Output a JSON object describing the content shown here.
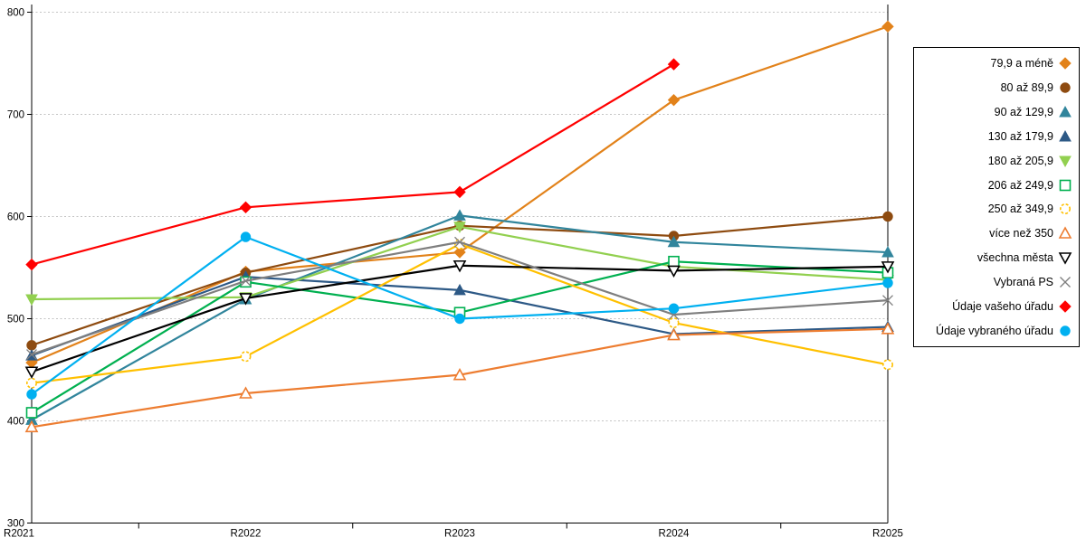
{
  "page": {
    "background": "#FFFFFF"
  },
  "chart_data": {
    "type": "line",
    "title": "",
    "xlabel": "",
    "ylabel": "",
    "x": [
      "R2021",
      "R2022",
      "R2023",
      "R2024",
      "R2025"
    ],
    "ylim": [
      300,
      800
    ],
    "yticks": [
      300,
      400,
      500,
      600,
      700,
      800
    ],
    "grid": "horizontal-dashed",
    "gridline_color": "#C3C3C3",
    "axis_color": "#000000",
    "legend_position": "right-outside-box",
    "series": [
      {
        "name": "79,9 a méně",
        "marker": "diamond",
        "filled": true,
        "color": "#E2821A",
        "values": [
          457,
          546,
          565,
          714,
          786
        ]
      },
      {
        "name": "80 až 89,9",
        "marker": "circle",
        "filled": true,
        "color": "#8E4B10",
        "values": [
          474,
          545,
          591,
          581,
          600
        ]
      },
      {
        "name": "90 až 129,9",
        "marker": "triangle-up",
        "filled": true,
        "color": "#31859C",
        "values": [
          401,
          519,
          601,
          575,
          565
        ]
      },
      {
        "name": "130 až 179,9",
        "marker": "triangle-up",
        "filled": true,
        "color": "#2D5986",
        "values": [
          464,
          541,
          528,
          485,
          492
        ]
      },
      {
        "name": "180 až 205,9",
        "marker": "triangle-down",
        "filled": true,
        "color": "#92D050",
        "values": [
          519,
          521,
          590,
          551,
          538
        ]
      },
      {
        "name": "206 až 249,9",
        "marker": "square",
        "filled": false,
        "color": "#00B050",
        "values": [
          408,
          536,
          506,
          556,
          545
        ]
      },
      {
        "name": "250 až 349,9",
        "marker": "circle-dashed",
        "filled": false,
        "color": "#FFC000",
        "values": [
          437,
          463,
          573,
          496,
          455
        ]
      },
      {
        "name": "více než 350",
        "marker": "triangle-up",
        "filled": false,
        "color": "#ED7D31",
        "values": [
          394,
          427,
          445,
          484,
          490
        ]
      },
      {
        "name": "všechna města",
        "marker": "triangle-down",
        "filled": false,
        "color": "#000000",
        "values": [
          448,
          520,
          552,
          547,
          551
        ]
      },
      {
        "name": "Vybraná PS",
        "marker": "x",
        "filled": false,
        "color": "#7F7F7F",
        "values": [
          465,
          537,
          575,
          504,
          518
        ]
      },
      {
        "name": "Údaje vašeho úřadu",
        "marker": "diamond",
        "filled": true,
        "color": "#FF0000",
        "values": [
          553,
          609,
          624,
          749,
          null
        ]
      },
      {
        "name": "Údaje vybraného úřadu",
        "marker": "circle",
        "filled": true,
        "color": "#00B0F0",
        "values": [
          426,
          580,
          500,
          510,
          535
        ]
      }
    ]
  }
}
